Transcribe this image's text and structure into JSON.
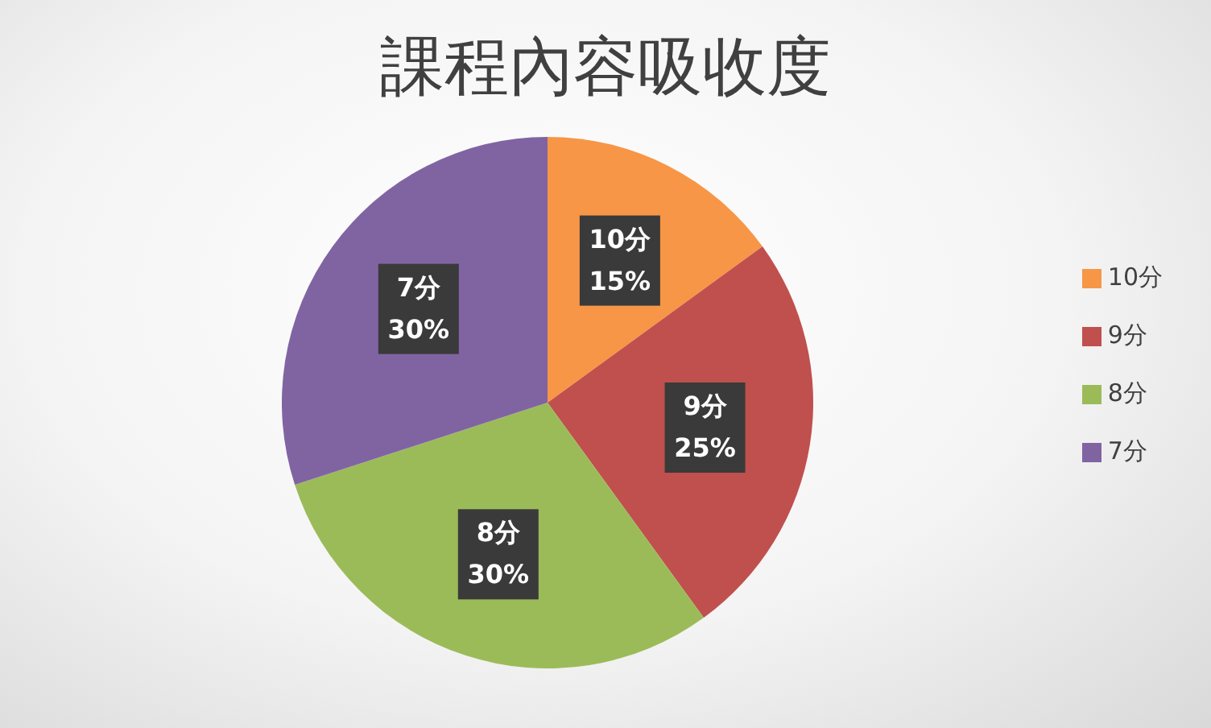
{
  "chart_data": {
    "type": "pie",
    "title": "課程內容吸收度",
    "categories": [
      "10分",
      "9分",
      "8分",
      "7分"
    ],
    "values": [
      15,
      25,
      30,
      30
    ],
    "colors": [
      "#f79646",
      "#c0504d",
      "#9bbb59",
      "#8064a2"
    ],
    "value_labels": [
      "15%",
      "25%",
      "30%",
      "30%"
    ],
    "legend": "right"
  }
}
